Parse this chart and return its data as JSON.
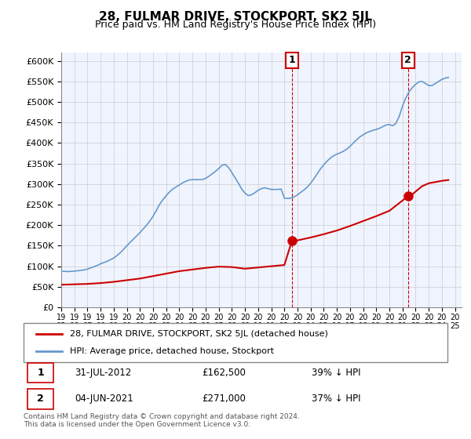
{
  "title": "28, FULMAR DRIVE, STOCKPORT, SK2 5JL",
  "subtitle": "Price paid vs. HM Land Registry's House Price Index (HPI)",
  "property_label": "28, FULMAR DRIVE, STOCKPORT, SK2 5JL (detached house)",
  "hpi_label": "HPI: Average price, detached house, Stockport",
  "sale1_date": "31-JUL-2012",
  "sale1_price": 162500,
  "sale1_pct": "39% ↓ HPI",
  "sale1_year": 2012.58,
  "sale2_date": "04-JUN-2021",
  "sale2_price": 271000,
  "sale2_pct": "37% ↓ HPI",
  "sale2_year": 2021.42,
  "property_color": "#cc0000",
  "hpi_color": "#6699cc",
  "dashed_color": "#cc0000",
  "background_color": "#ffffff",
  "grid_color": "#cccccc",
  "ylim": [
    0,
    620000
  ],
  "xlim_start": 1995.0,
  "xlim_end": 2025.5,
  "footer": "Contains HM Land Registry data © Crown copyright and database right 2024.\nThis data is licensed under the Open Government Licence v3.0.",
  "hpi_data": {
    "years": [
      1995.0,
      1995.25,
      1995.5,
      1995.75,
      1996.0,
      1996.25,
      1996.5,
      1996.75,
      1997.0,
      1997.25,
      1997.5,
      1997.75,
      1998.0,
      1998.25,
      1998.5,
      1998.75,
      1999.0,
      1999.25,
      1999.5,
      1999.75,
      2000.0,
      2000.25,
      2000.5,
      2000.75,
      2001.0,
      2001.25,
      2001.5,
      2001.75,
      2002.0,
      2002.25,
      2002.5,
      2002.75,
      2003.0,
      2003.25,
      2003.5,
      2003.75,
      2004.0,
      2004.25,
      2004.5,
      2004.75,
      2005.0,
      2005.25,
      2005.5,
      2005.75,
      2006.0,
      2006.25,
      2006.5,
      2006.75,
      2007.0,
      2007.25,
      2007.5,
      2007.75,
      2008.0,
      2008.25,
      2008.5,
      2008.75,
      2009.0,
      2009.25,
      2009.5,
      2009.75,
      2010.0,
      2010.25,
      2010.5,
      2010.75,
      2011.0,
      2011.25,
      2011.5,
      2011.75,
      2012.0,
      2012.25,
      2012.5,
      2012.75,
      2013.0,
      2013.25,
      2013.5,
      2013.75,
      2014.0,
      2014.25,
      2014.5,
      2014.75,
      2015.0,
      2015.25,
      2015.5,
      2015.75,
      2016.0,
      2016.25,
      2016.5,
      2016.75,
      2017.0,
      2017.25,
      2017.5,
      2017.75,
      2018.0,
      2018.25,
      2018.5,
      2018.75,
      2019.0,
      2019.25,
      2019.5,
      2019.75,
      2020.0,
      2020.25,
      2020.5,
      2020.75,
      2021.0,
      2021.25,
      2021.5,
      2021.75,
      2022.0,
      2022.25,
      2022.5,
      2022.75,
      2023.0,
      2023.25,
      2023.5,
      2023.75,
      2024.0,
      2024.25,
      2024.5
    ],
    "values": [
      88000,
      87500,
      87000,
      87500,
      88000,
      89000,
      90000,
      91000,
      93000,
      96000,
      99000,
      102000,
      106000,
      109000,
      112000,
      116000,
      120000,
      126000,
      133000,
      141000,
      150000,
      158000,
      166000,
      174000,
      182000,
      191000,
      200000,
      210000,
      222000,
      236000,
      251000,
      262000,
      272000,
      281000,
      288000,
      293000,
      298000,
      303000,
      307000,
      310000,
      311000,
      311000,
      311000,
      311000,
      314000,
      319000,
      325000,
      331000,
      338000,
      346000,
      348000,
      340000,
      328000,
      315000,
      302000,
      288000,
      278000,
      272000,
      274000,
      279000,
      285000,
      289000,
      291000,
      289000,
      287000,
      287000,
      287000,
      288000,
      266000,
      265000,
      266000,
      269000,
      274000,
      280000,
      286000,
      293000,
      302000,
      313000,
      325000,
      337000,
      347000,
      356000,
      363000,
      369000,
      373000,
      376000,
      380000,
      385000,
      392000,
      400000,
      408000,
      415000,
      420000,
      425000,
      428000,
      431000,
      433000,
      436000,
      440000,
      444000,
      445000,
      442000,
      448000,
      465000,
      490000,
      510000,
      525000,
      535000,
      543000,
      549000,
      550000,
      545000,
      540000,
      540000,
      545000,
      550000,
      555000,
      558000,
      560000
    ]
  },
  "property_data": {
    "years": [
      1995.0,
      1995.5,
      1996.0,
      1997.0,
      1998.0,
      1999.0,
      2000.0,
      2001.0,
      2002.0,
      2003.0,
      2004.0,
      2005.0,
      2006.0,
      2007.0,
      2008.0,
      2009.0,
      2010.0,
      2011.0,
      2012.0,
      2012.58,
      2012.75,
      2013.0,
      2014.0,
      2015.0,
      2016.0,
      2017.0,
      2018.0,
      2019.0,
      2020.0,
      2021.0,
      2021.42,
      2021.75,
      2022.0,
      2022.5,
      2023.0,
      2023.5,
      2024.0,
      2024.5
    ],
    "values": [
      55000,
      55500,
      56000,
      57000,
      59000,
      62000,
      66000,
      70000,
      76000,
      82000,
      88000,
      92000,
      96000,
      99000,
      98000,
      94000,
      97000,
      100000,
      103000,
      162500,
      162500,
      163000,
      170000,
      178000,
      187000,
      198000,
      210000,
      222000,
      235000,
      260000,
      271000,
      275000,
      282000,
      295000,
      302000,
      305000,
      308000,
      310000
    ]
  }
}
